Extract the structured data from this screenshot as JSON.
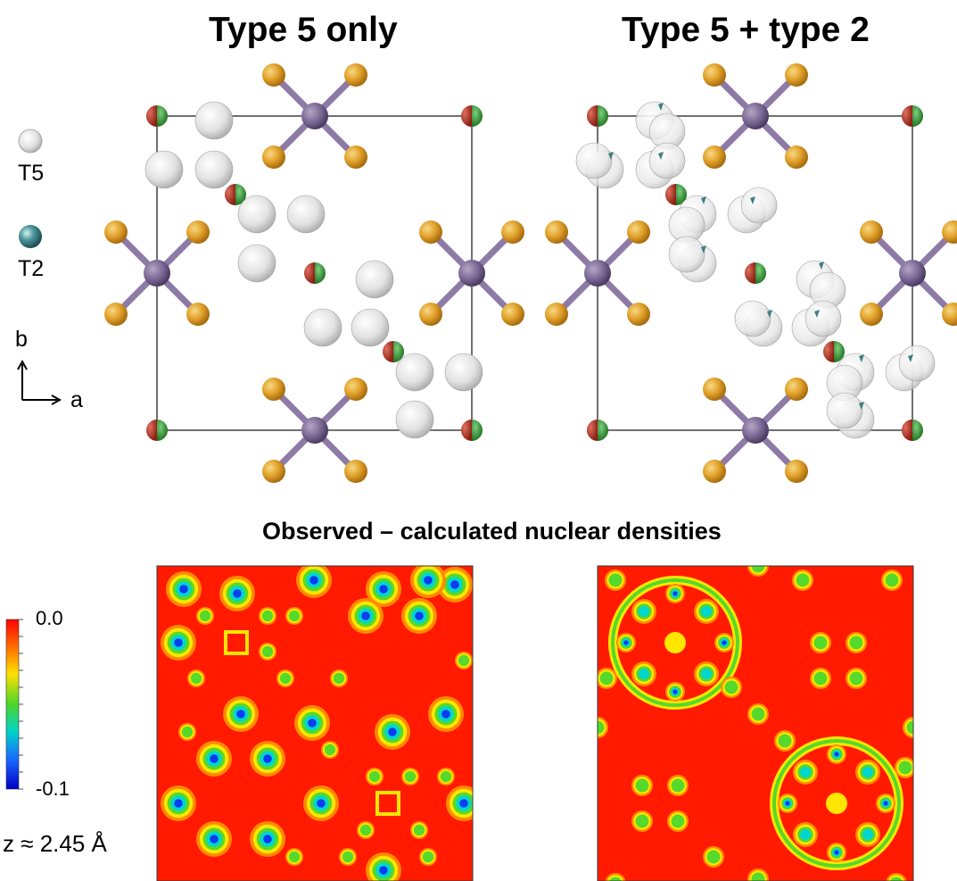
{
  "titles": {
    "left": "Type 5 only",
    "right": "Type 5 + type 2"
  },
  "subtitle": "Observed – calculated nuclear densities",
  "legend": {
    "t5": "T5",
    "t2": "T2"
  },
  "axes": {
    "b": "b",
    "a": "a"
  },
  "colorbar": {
    "max": "0.0",
    "min": "-0.1"
  },
  "z_label": "z ≈ 2.45 Å",
  "colors": {
    "framework_center": "#7a6894",
    "framework_ligand": "#e1a12a",
    "bond": "#8e7aa6",
    "t5_atom": "#d6d6d6",
    "t2_atom": "#3f7e80",
    "corner_red": "#a02818",
    "corner_green": "#2c8a2c",
    "density_background": "#ff1a00"
  }
}
